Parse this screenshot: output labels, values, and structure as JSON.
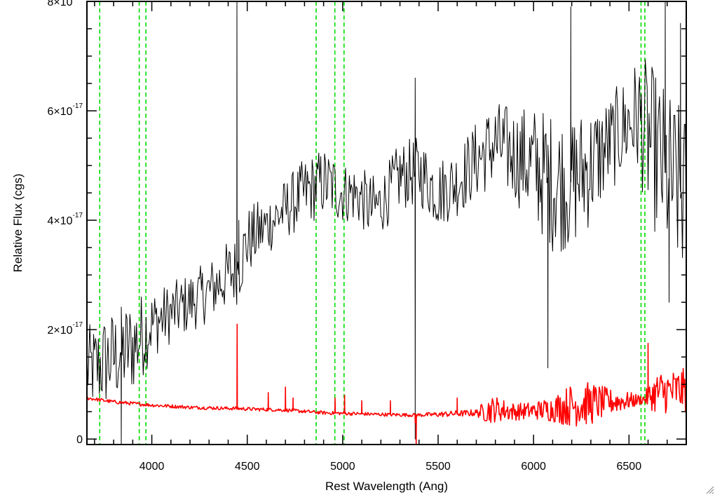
{
  "chart_data": {
    "type": "line",
    "title": "",
    "xlabel": "Rest Wavelength (Ang)",
    "ylabel": "Relative Flux (cgs)",
    "xlim": [
      3660,
      6800
    ],
    "ylim": [
      -0.1,
      8.0
    ],
    "y_unit_exponent": "-17",
    "x_ticks": [
      4000,
      4500,
      5000,
      5500,
      6000,
      6500
    ],
    "x_tick_labels": [
      "4000",
      "4500",
      "5000",
      "5500",
      "6000",
      "6500"
    ],
    "y_ticks": [
      0,
      2,
      4,
      6,
      8
    ],
    "y_tick_labels": [
      {
        "mantissa": "0",
        "base": "",
        "exp": ""
      },
      {
        "mantissa": "2",
        "base": "×10",
        "exp": "-17"
      },
      {
        "mantissa": "4",
        "base": "×10",
        "exp": "-17"
      },
      {
        "mantissa": "6",
        "base": "×10",
        "exp": "-17"
      },
      {
        "mantissa": "8",
        "base": "×10",
        "exp": "-17"
      }
    ],
    "grid": false,
    "series": [
      {
        "color": "#000000",
        "sampling_step": 5,
        "x": [
          3660,
          3700,
          3750,
          3800,
          3850,
          3900,
          3950,
          4000,
          4100,
          4200,
          4300,
          4400,
          4450,
          4500,
          4600,
          4700,
          4800,
          4850,
          4900,
          4950,
          5000,
          5050,
          5100,
          5150,
          5200,
          5300,
          5400,
          5500,
          5600,
          5700,
          5800,
          5900,
          6000,
          6100,
          6200,
          6300,
          6400,
          6500,
          6550,
          6600,
          6700,
          6800
        ],
        "y": [
          1.3,
          1.3,
          1.4,
          1.5,
          1.6,
          1.7,
          1.9,
          2.1,
          2.3,
          2.5,
          2.7,
          3.0,
          3.1,
          3.6,
          3.9,
          4.2,
          4.5,
          4.6,
          4.7,
          4.6,
          4.5,
          4.5,
          4.4,
          4.2,
          4.3,
          4.8,
          4.9,
          4.5,
          4.7,
          5.1,
          5.4,
          5.2,
          5.0,
          4.7,
          4.7,
          5.0,
          5.4,
          5.8,
          5.9,
          5.5,
          4.8,
          4.4
        ],
        "noise_amplitude": [
          0.5,
          0.5,
          0.55,
          0.55,
          0.55,
          0.55,
          0.5,
          0.4,
          0.35,
          0.35,
          0.35,
          0.4,
          0.4,
          0.4,
          0.35,
          0.35,
          0.4,
          0.4,
          0.4,
          0.4,
          0.35,
          0.35,
          0.35,
          0.4,
          0.35,
          0.4,
          0.4,
          0.4,
          0.4,
          0.45,
          0.5,
          0.55,
          0.7,
          0.8,
          0.8,
          0.7,
          0.55,
          0.6,
          0.7,
          0.9,
          1.0,
          1.0
        ],
        "spikes": [
          {
            "x": 4446,
            "y": 8.1
          },
          {
            "x": 4456,
            "y": 4.0
          },
          {
            "x": 5380,
            "y": 0.0
          },
          {
            "x": 5380,
            "y": 6.6
          },
          {
            "x": 6075,
            "y": 1.3
          },
          {
            "x": 6195,
            "y": 7.9
          },
          {
            "x": 6690,
            "y": 8.1
          },
          {
            "x": 6710,
            "y": 2.5
          },
          {
            "x": 6770,
            "y": 7.6
          },
          {
            "x": 3840,
            "y": -0.1
          }
        ]
      },
      {
        "color": "#ff0000",
        "sampling_step": 4,
        "x": [
          3660,
          3800,
          4000,
          4200,
          4400,
          4440,
          4500,
          4700,
          4900,
          5000,
          5200,
          5350,
          5400,
          5500,
          5700,
          5760,
          5800,
          5900,
          6000,
          6100,
          6200,
          6300,
          6400,
          6500,
          6570,
          6650,
          6800
        ],
        "y": [
          0.75,
          0.68,
          0.62,
          0.58,
          0.56,
          0.56,
          0.55,
          0.53,
          0.48,
          0.47,
          0.45,
          0.44,
          0.44,
          0.45,
          0.48,
          0.52,
          0.55,
          0.5,
          0.52,
          0.55,
          0.62,
          0.65,
          0.68,
          0.7,
          0.72,
          0.85,
          0.9
        ],
        "noise_amplitude": [
          0.02,
          0.02,
          0.02,
          0.02,
          0.02,
          0.02,
          0.02,
          0.02,
          0.02,
          0.02,
          0.02,
          0.02,
          0.02,
          0.03,
          0.04,
          0.15,
          0.15,
          0.1,
          0.1,
          0.15,
          0.25,
          0.25,
          0.15,
          0.1,
          0.05,
          0.25,
          0.25
        ],
        "spikes": [
          {
            "x": 4447,
            "y": 2.1
          },
          {
            "x": 4610,
            "y": 0.85
          },
          {
            "x": 4700,
            "y": 0.95
          },
          {
            "x": 4740,
            "y": 0.75
          },
          {
            "x": 4960,
            "y": 0.75
          },
          {
            "x": 5010,
            "y": 0.8
          },
          {
            "x": 5100,
            "y": 0.7
          },
          {
            "x": 5250,
            "y": 0.7
          },
          {
            "x": 5385,
            "y": -0.1
          },
          {
            "x": 5380,
            "y": 0.3
          },
          {
            "x": 5600,
            "y": 0.75
          },
          {
            "x": 6600,
            "y": 1.75
          }
        ]
      }
    ],
    "vertical_lines": {
      "color": "#00dd00",
      "style": "dashed",
      "x": [
        3727,
        3934,
        3969,
        4861,
        4959,
        5007,
        6563,
        6583
      ]
    }
  }
}
